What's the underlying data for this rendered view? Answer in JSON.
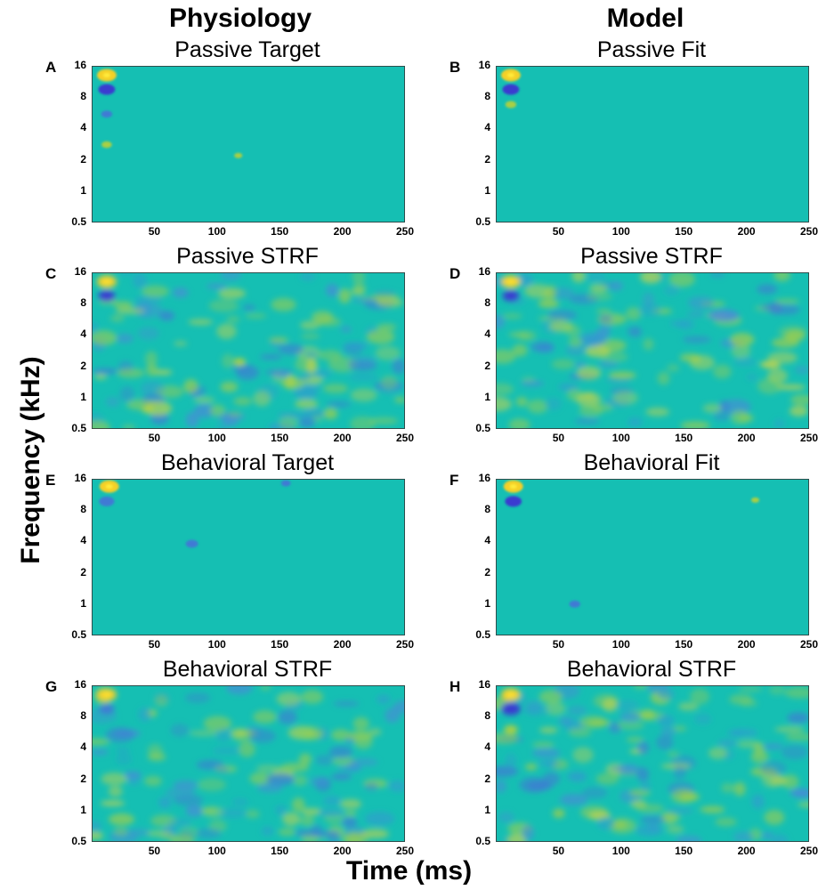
{
  "columns": {
    "left": "Physiology",
    "right": "Model"
  },
  "axes": {
    "ylabel": "Frequency (kHz)",
    "xlabel": "Time (ms)"
  },
  "colors": {
    "background": "#15bfb3",
    "hot": "#f5d028",
    "warm": "#a8cf45",
    "cool": "#3f7ad4",
    "deep": "#3a3ad0"
  },
  "chart_data": [
    {
      "id": "A",
      "title": "Passive Target",
      "type": "heatmap",
      "yticks": [
        "16",
        "8",
        "4",
        "2",
        "1",
        "0.5"
      ],
      "xticks": [
        "50",
        "100",
        "150",
        "200",
        "250"
      ],
      "xlim": [
        0,
        250
      ],
      "ylim_khz": [
        0.5,
        16
      ],
      "pattern": "sparse",
      "blobs": [
        {
          "t": 12,
          "f": 13,
          "v": 1.0
        },
        {
          "t": 12,
          "f": 9.5,
          "v": -0.8
        },
        {
          "t": 12,
          "f": 5.5,
          "v": -0.4
        },
        {
          "t": 12,
          "f": 2.8,
          "v": 0.35
        },
        {
          "t": 117,
          "f": 2.2,
          "v": 0.2
        }
      ]
    },
    {
      "id": "B",
      "title": "Passive Fit",
      "type": "heatmap",
      "yticks": [
        "16",
        "8",
        "4",
        "2",
        "1",
        "0.5"
      ],
      "xticks": [
        "50",
        "100",
        "150",
        "200",
        "250"
      ],
      "xlim": [
        0,
        250
      ],
      "ylim_khz": [
        0.5,
        16
      ],
      "pattern": "sparse",
      "blobs": [
        {
          "t": 12,
          "f": 13,
          "v": 1.0
        },
        {
          "t": 12,
          "f": 9.5,
          "v": -0.8
        },
        {
          "t": 12,
          "f": 6.8,
          "v": 0.4
        }
      ]
    },
    {
      "id": "C",
      "title": "Passive STRF",
      "type": "heatmap",
      "yticks": [
        "16",
        "8",
        "4",
        "2",
        "1",
        "0.5"
      ],
      "xticks": [
        "50",
        "100",
        "150",
        "200",
        "250"
      ],
      "xlim": [
        0,
        250
      ],
      "ylim_khz": [
        0.5,
        16
      ],
      "pattern": "texture",
      "seed": 3,
      "blobs": [
        {
          "t": 12,
          "f": 13,
          "v": 1.0
        },
        {
          "t": 12,
          "f": 9.5,
          "v": -0.8
        },
        {
          "t": 118,
          "f": 2.2,
          "v": 0.5
        }
      ]
    },
    {
      "id": "D",
      "title": "Passive STRF",
      "type": "heatmap",
      "yticks": [
        "16",
        "8",
        "4",
        "2",
        "1",
        "0.5"
      ],
      "xticks": [
        "50",
        "100",
        "150",
        "200",
        "250"
      ],
      "xlim": [
        0,
        250
      ],
      "ylim_khz": [
        0.5,
        16
      ],
      "pattern": "texture",
      "seed": 7,
      "blobs": [
        {
          "t": 12,
          "f": 13,
          "v": 1.0
        },
        {
          "t": 12,
          "f": 9.5,
          "v": -0.8
        }
      ]
    },
    {
      "id": "E",
      "title": "Behavioral Target",
      "type": "heatmap",
      "yticks": [
        "16",
        "8",
        "4",
        "2",
        "1",
        "0.5"
      ],
      "xticks": [
        "50",
        "100",
        "150",
        "200",
        "250"
      ],
      "xlim": [
        0,
        250
      ],
      "ylim_khz": [
        0.5,
        16
      ],
      "pattern": "sparse",
      "blobs": [
        {
          "t": 14,
          "f": 13.5,
          "v": 1.0
        },
        {
          "t": 12,
          "f": 9.7,
          "v": -0.7
        },
        {
          "t": 80,
          "f": 3.8,
          "v": -0.5
        },
        {
          "t": 155,
          "f": 14.5,
          "v": -0.3
        }
      ]
    },
    {
      "id": "F",
      "title": "Behavioral Fit",
      "type": "heatmap",
      "yticks": [
        "16",
        "8",
        "4",
        "2",
        "1",
        "0.5"
      ],
      "xticks": [
        "50",
        "100",
        "150",
        "200",
        "250"
      ],
      "xlim": [
        0,
        250
      ],
      "ylim_khz": [
        0.5,
        16
      ],
      "pattern": "sparse",
      "blobs": [
        {
          "t": 14,
          "f": 13.5,
          "v": 1.0
        },
        {
          "t": 14,
          "f": 9.7,
          "v": -0.8
        },
        {
          "t": 63,
          "f": 1.0,
          "v": -0.4
        },
        {
          "t": 207,
          "f": 10,
          "v": 0.2
        }
      ]
    },
    {
      "id": "G",
      "title": "Behavioral STRF",
      "type": "heatmap",
      "yticks": [
        "16",
        "8",
        "4",
        "2",
        "1",
        "0.5"
      ],
      "xticks": [
        "50",
        "100",
        "150",
        "200",
        "250"
      ],
      "xlim": [
        0,
        250
      ],
      "ylim_khz": [
        0.5,
        16
      ],
      "pattern": "texture",
      "seed": 11,
      "blobs": [
        {
          "t": 12,
          "f": 13,
          "v": 1.0
        },
        {
          "t": 12,
          "f": 9.5,
          "v": -0.7
        }
      ]
    },
    {
      "id": "H",
      "title": "Behavioral STRF",
      "type": "heatmap",
      "yticks": [
        "16",
        "8",
        "4",
        "2",
        "1",
        "0.5"
      ],
      "xticks": [
        "50",
        "100",
        "150",
        "200",
        "250"
      ],
      "xlim": [
        0,
        250
      ],
      "ylim_khz": [
        0.5,
        16
      ],
      "pattern": "texture",
      "seed": 19,
      "blobs": [
        {
          "t": 12,
          "f": 13,
          "v": 1.0
        },
        {
          "t": 12,
          "f": 9.5,
          "v": -1.0
        },
        {
          "t": 12,
          "f": 6.0,
          "v": 0.6
        }
      ]
    }
  ]
}
